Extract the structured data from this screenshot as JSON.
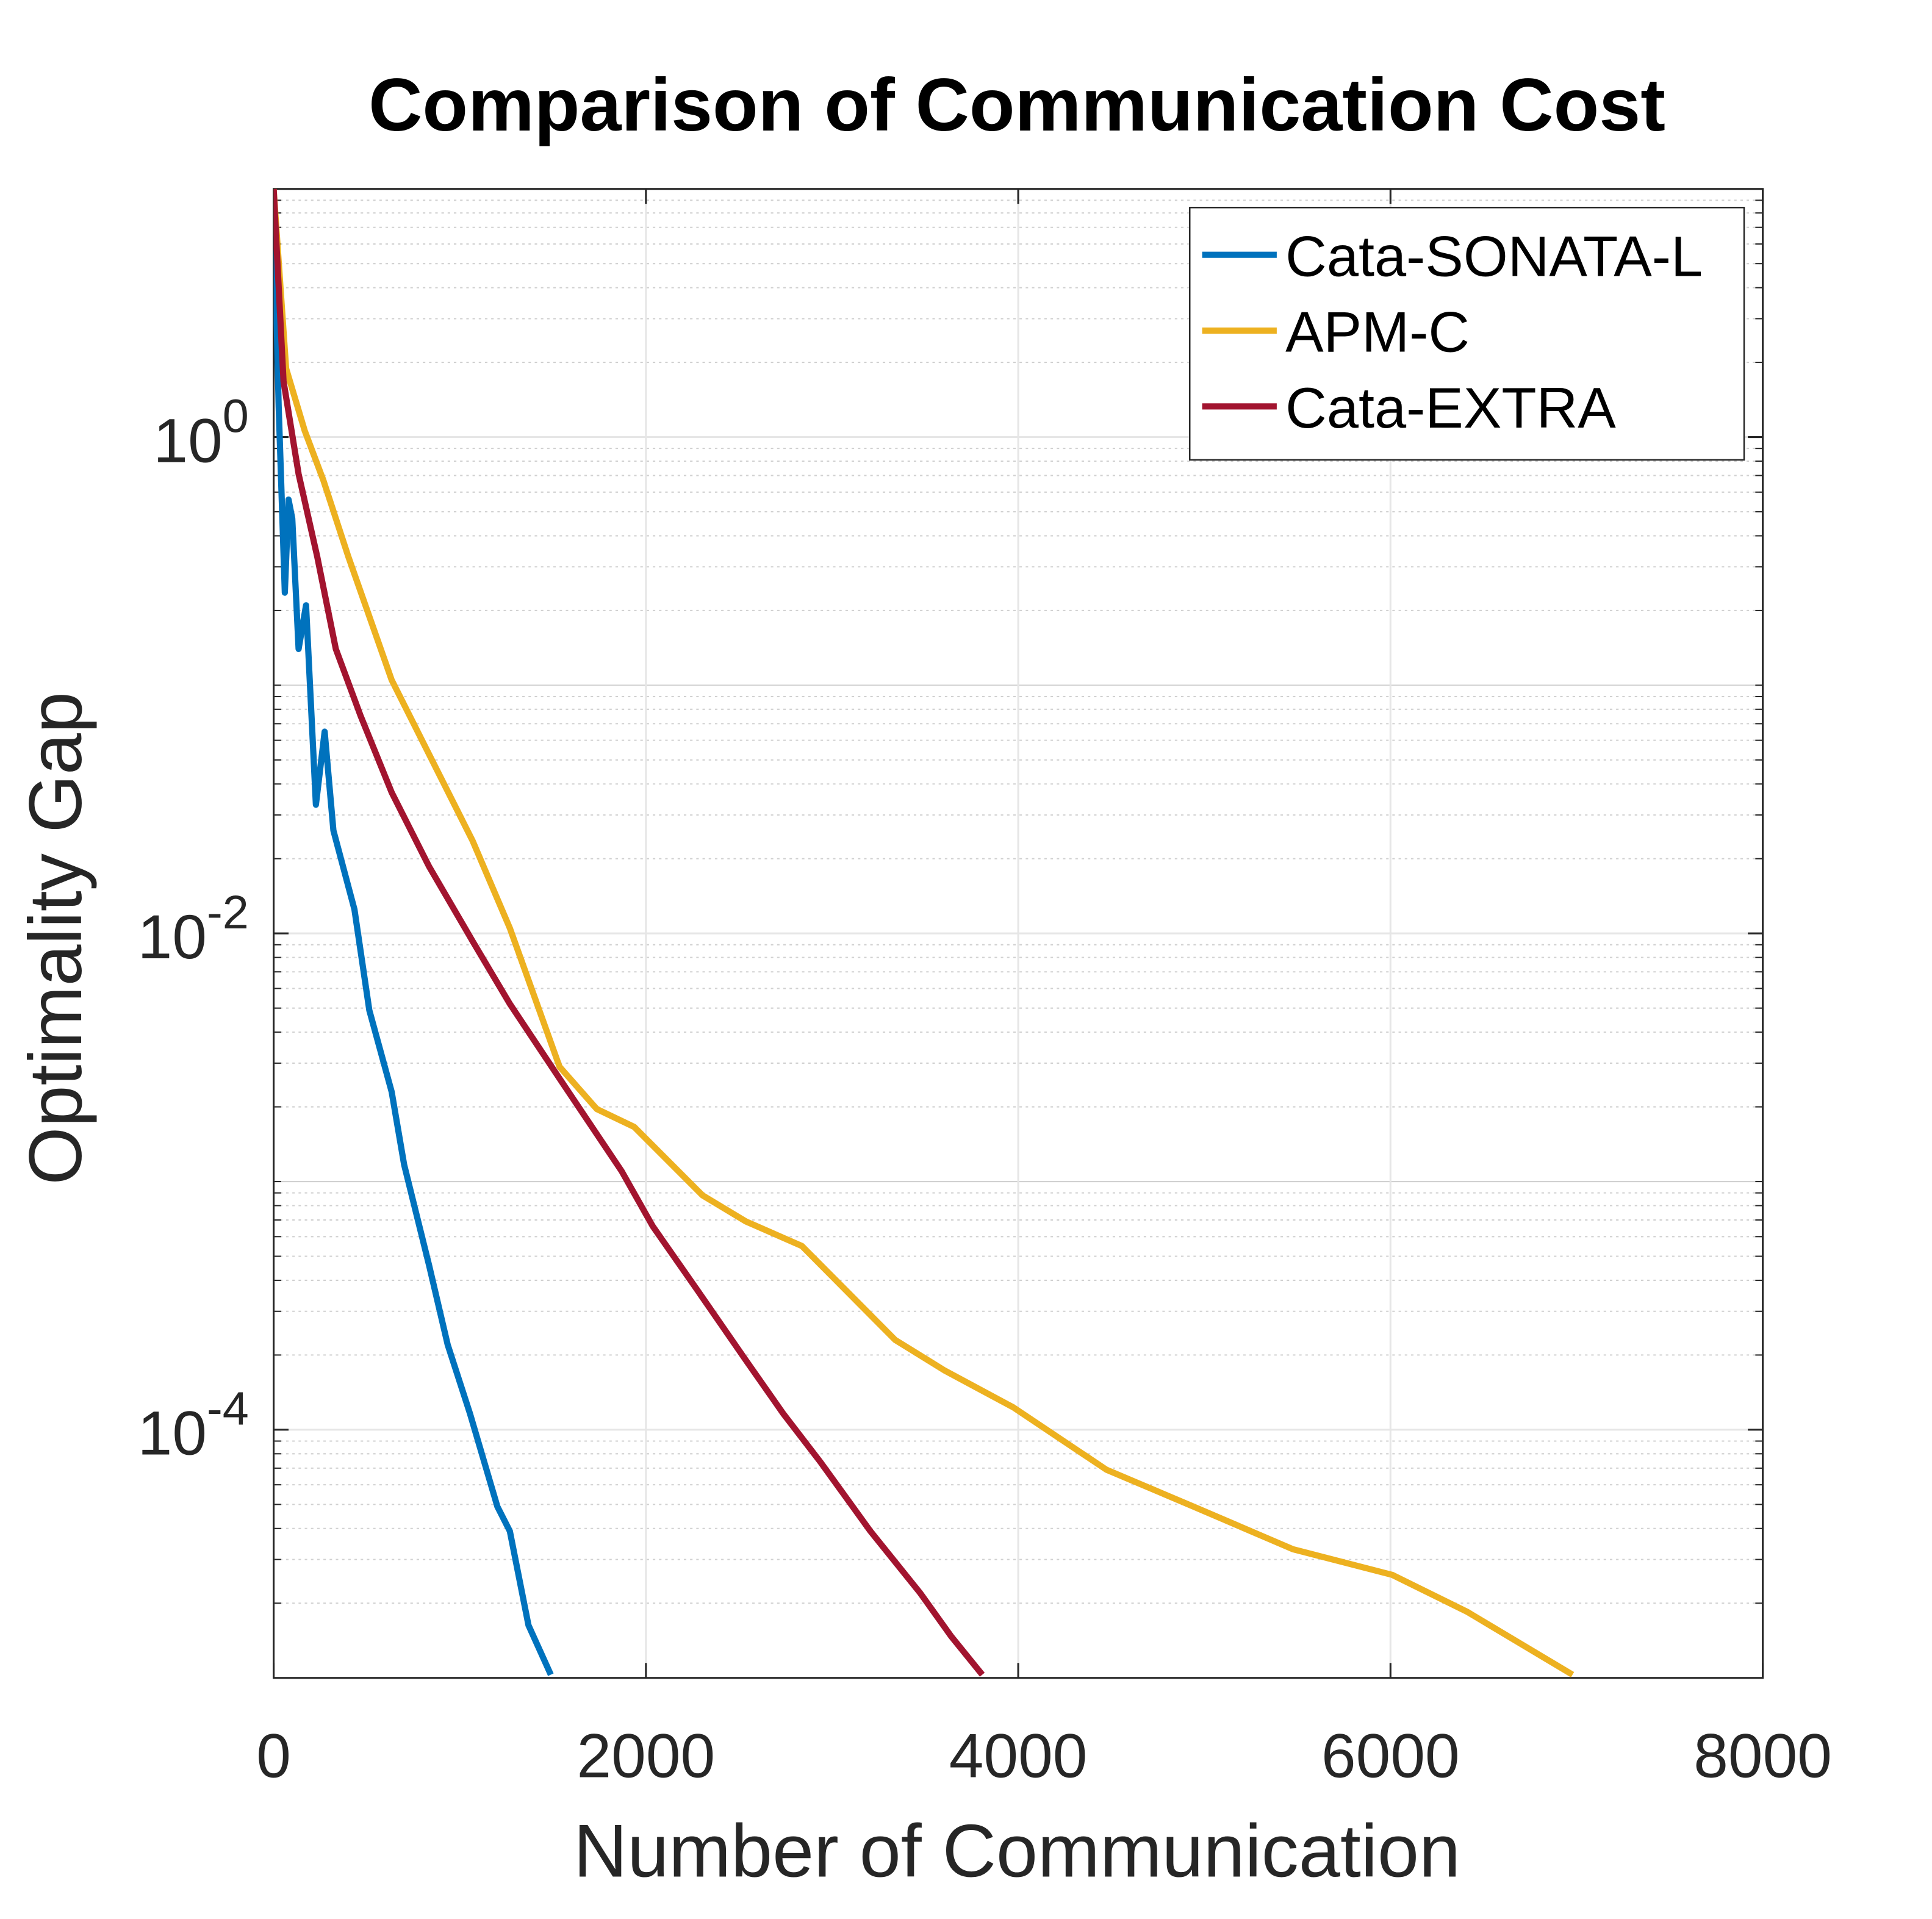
{
  "chart_data": {
    "type": "line",
    "title": "Comparison of Communication Cost",
    "xlabel": "Number of Communication",
    "ylabel": "Optimality Gap",
    "xlim": [
      0,
      8000
    ],
    "xticks": [
      0,
      2000,
      4000,
      6000,
      8000
    ],
    "ylim": [
      1e-05,
      10
    ],
    "yscale": "log",
    "yticks": [
      {
        "value": 0.0001,
        "label": "10^-4"
      },
      {
        "value": 0.01,
        "label": "10^-2"
      },
      {
        "value": 1,
        "label": "10^0"
      }
    ],
    "grid": true,
    "minor_grid": true,
    "legend": "top-right",
    "series": [
      {
        "name": "Cata-SONATA-L",
        "color": "#0072bd",
        "x": [
          0,
          27,
          60,
          80,
          100,
          134,
          174,
          227,
          274,
          321,
          434,
          514,
          634,
          701,
          835,
          935,
          1055,
          1202,
          1269,
          1369,
          1489
        ],
        "values": [
          9.5,
          1.33,
          0.236,
          0.56,
          0.47,
          0.14,
          0.21,
          0.033,
          0.065,
          0.026,
          0.0125,
          0.0049,
          0.0023,
          0.00117,
          0.00046,
          0.00022,
          0.000116,
          4.9e-05,
          3.9e-05,
          1.63e-05,
          1.03e-05
        ]
      },
      {
        "name": "APM-C",
        "color": "#edb120",
        "x": [
          0,
          67,
          167,
          267,
          401,
          634,
          802,
          1069,
          1269,
          1536,
          1736,
          1937,
          2304,
          2538,
          2838,
          3339,
          3606,
          3974,
          4474,
          4942,
          5476,
          6010,
          6410,
          6978
        ],
        "values": [
          10,
          1.89,
          1.06,
          0.67,
          0.33,
          0.105,
          0.059,
          0.0236,
          0.0105,
          0.0029,
          0.00196,
          0.00166,
          0.00088,
          0.00069,
          0.00055,
          0.00023,
          0.000173,
          0.000123,
          6.9e-05,
          4.9e-05,
          3.3e-05,
          2.6e-05,
          1.85e-05,
          1.03e-05
        ]
      },
      {
        "name": "Cata-EXTRA",
        "color": "#a2142f",
        "x": [
          0,
          53,
          134,
          234,
          334,
          468,
          634,
          835,
          1069,
          1269,
          1536,
          1870,
          2037,
          2271,
          2538,
          2738,
          2938,
          3206,
          3473,
          3640,
          3807
        ],
        "values": [
          10,
          1.68,
          0.71,
          0.33,
          0.14,
          0.075,
          0.037,
          0.0186,
          0.0093,
          0.0052,
          0.0026,
          0.0011,
          0.00066,
          0.00037,
          0.00019,
          0.000116,
          7.4e-05,
          3.9e-05,
          2.2e-05,
          1.47e-05,
          1.03e-05
        ]
      }
    ]
  }
}
